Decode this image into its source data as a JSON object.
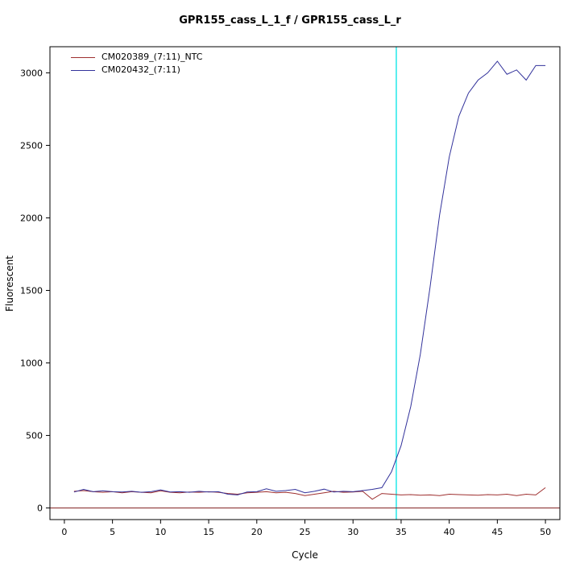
{
  "chart_data": {
    "type": "line",
    "title": "GPR155_cass_L_1_f / GPR155_cass_L_r",
    "xlabel": "Cycle",
    "ylabel": "Fluorescent",
    "legend_position": "top-left",
    "grid": false,
    "xlim": [
      -1.5,
      51.5
    ],
    "ylim": [
      -80,
      3180
    ],
    "x_ticks": [
      0,
      5,
      10,
      15,
      20,
      25,
      30,
      35,
      40,
      45,
      50
    ],
    "y_ticks": [
      0,
      500,
      1000,
      1500,
      2000,
      2500,
      3000
    ],
    "threshold_line_y": 0,
    "threshold_color": "#7f1f1f",
    "ct_line_x": 34.5,
    "ct_line_color": "#00e5e5",
    "x": [
      1,
      2,
      3,
      4,
      5,
      6,
      7,
      8,
      9,
      10,
      11,
      12,
      13,
      14,
      15,
      16,
      17,
      18,
      19,
      20,
      21,
      22,
      23,
      24,
      25,
      26,
      27,
      28,
      29,
      30,
      31,
      32,
      33,
      34,
      35,
      36,
      37,
      38,
      39,
      40,
      41,
      42,
      43,
      44,
      45,
      46,
      47,
      48,
      49,
      50
    ],
    "series": [
      {
        "name": "CM020389_(7:11)_NTC",
        "color": "#9e2f2f",
        "values": [
          115,
          120,
          112,
          108,
          112,
          105,
          112,
          108,
          105,
          118,
          108,
          105,
          110,
          108,
          112,
          108,
          100,
          95,
          105,
          108,
          112,
          105,
          108,
          100,
          85,
          95,
          105,
          115,
          108,
          110,
          115,
          60,
          100,
          95,
          90,
          92,
          88,
          90,
          85,
          95,
          92,
          90,
          88,
          92,
          90,
          95,
          85,
          95,
          90,
          140
        ]
      },
      {
        "name": "CM020432_(7:11)",
        "color": "#32329b",
        "values": [
          110,
          128,
          112,
          118,
          112,
          110,
          115,
          108,
          112,
          125,
          110,
          112,
          108,
          115,
          110,
          112,
          95,
          90,
          110,
          112,
          132,
          115,
          120,
          128,
          105,
          115,
          130,
          110,
          115,
          112,
          120,
          128,
          140,
          250,
          430,
          700,
          1060,
          1520,
          2020,
          2420,
          2700,
          2860,
          2950,
          3000,
          3080,
          2990,
          3020,
          2950,
          3050,
          3050
        ]
      }
    ]
  }
}
